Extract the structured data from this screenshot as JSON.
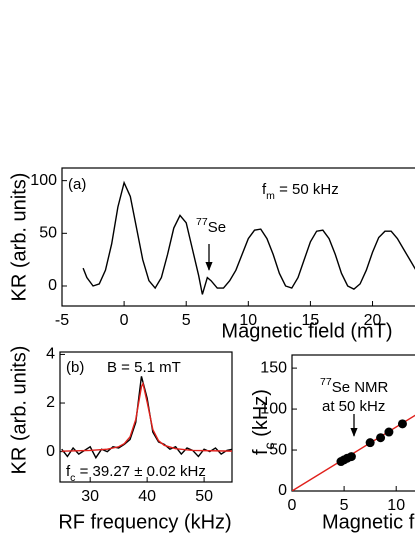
{
  "chart_data": [
    {
      "type": "line",
      "panel": "(a)",
      "xlabel": "Magnetic field (mT)",
      "ylabel": "KR (arb. units)",
      "xlim": [
        -5,
        23.5
      ],
      "ylim": [
        -19,
        112
      ],
      "xticks": [
        -5,
        0,
        5,
        10,
        15,
        20
      ],
      "yticks": [
        0,
        50,
        100
      ],
      "annotations": [
        {
          "parts": [
            {
              "text": "f"
            },
            {
              "text": "m",
              "sub": true
            },
            {
              "text": " = 50 kHz"
            }
          ]
        },
        {
          "parts": [
            {
              "text": "77",
              "sup": true
            },
            {
              "text": "Se"
            }
          ]
        }
      ],
      "series": [
        {
          "color": "#000000",
          "x": [
            -3.3,
            -3,
            -2.5,
            -2,
            -1.5,
            -1,
            -0.5,
            0,
            0.5,
            1,
            1.5,
            2,
            2.5,
            3,
            3.5,
            4,
            4.5,
            5,
            5.5,
            6,
            6.3,
            6.7,
            7,
            7.5,
            8,
            8.5,
            9,
            9.5,
            10,
            10.5,
            11,
            11.5,
            12,
            12.5,
            13,
            13.5,
            14,
            14.5,
            15,
            15.5,
            16,
            16.5,
            17,
            17.5,
            18,
            18.5,
            19,
            19.5,
            20,
            20.5,
            21,
            21.5,
            22,
            22.5,
            23,
            23.5
          ],
          "values": [
            17,
            8,
            0,
            2,
            15,
            40,
            75,
            98,
            85,
            55,
            25,
            5,
            -2,
            8,
            30,
            55,
            67,
            60,
            35,
            10,
            -8,
            8,
            5,
            -2,
            -2,
            5,
            15,
            30,
            45,
            53,
            54,
            45,
            30,
            12,
            0,
            -2,
            8,
            25,
            42,
            52,
            53,
            45,
            30,
            12,
            0,
            -3,
            2,
            15,
            32,
            46,
            52,
            52,
            45,
            35,
            25,
            15
          ]
        }
      ]
    },
    {
      "type": "line",
      "panel": "(b)",
      "xlabel": "RF frequency (kHz)",
      "ylabel": "KR (arb. units)",
      "xlim": [
        24.7,
        54.9
      ],
      "ylim": [
        -1.25,
        4.1
      ],
      "xticks": [
        30,
        40,
        50
      ],
      "yticks": [
        0,
        2,
        4
      ],
      "annotations": [
        {
          "parts": [
            {
              "text": "B = 5.1 mT"
            }
          ]
        },
        {
          "parts": [
            {
              "text": "f"
            },
            {
              "text": "c",
              "sub": true
            },
            {
              "text": " = 39.27 ± 0.02 kHz"
            }
          ]
        }
      ],
      "series": [
        {
          "color": "#000000",
          "x": [
            25,
            26,
            27,
            28,
            29,
            30,
            31,
            32,
            33,
            34,
            35,
            36,
            37,
            38,
            39,
            40,
            41,
            42,
            43,
            44,
            45,
            46,
            47,
            48,
            49,
            50,
            51,
            52,
            53,
            54,
            55
          ],
          "values": [
            0.1,
            -0.2,
            0.15,
            -0.1,
            0.05,
            0.2,
            -0.25,
            0.1,
            0.0,
            0.2,
            0.15,
            0.3,
            0.5,
            1.2,
            3.1,
            2.2,
            0.8,
            0.4,
            0.3,
            0.1,
            0.2,
            -0.1,
            0.15,
            0.05,
            -0.2,
            0.1,
            0.0,
            0.15,
            -0.1,
            0.05,
            0.1
          ]
        },
        {
          "color": "#e0201b",
          "x": [
            25,
            30,
            33,
            35,
            36,
            37,
            38,
            39,
            39.27,
            40,
            41,
            42,
            43,
            45,
            48,
            55
          ],
          "values": [
            0.02,
            0.05,
            0.1,
            0.2,
            0.33,
            0.61,
            1.32,
            2.67,
            2.8,
            2.04,
            0.91,
            0.45,
            0.26,
            0.12,
            0.05,
            0.02
          ]
        }
      ]
    },
    {
      "type": "scatter",
      "xlabel": "Magnetic field (mT)",
      "ylabel": [
        {
          "text": "f"
        },
        {
          "text": "c",
          "sub": true
        },
        {
          "text": " (kHz)"
        }
      ],
      "xlim": [
        0,
        11.9
      ],
      "ylim": [
        0,
        166
      ],
      "xticks": [
        0,
        5,
        10
      ],
      "yticks": [
        0,
        50,
        100,
        150
      ],
      "annotations": [
        {
          "parts": [
            {
              "text": "77",
              "sup": true
            },
            {
              "text": "Se NMR"
            }
          ]
        },
        {
          "parts": [
            {
              "text": "at 50 kHz"
            }
          ]
        }
      ],
      "series": [
        {
          "type": "line",
          "color": "#e0201b",
          "x": [
            0,
            11.9
          ],
          "values": [
            0,
            93
          ]
        },
        {
          "type": "scatter",
          "color": "#000000",
          "x": [
            4.7,
            5.0,
            5.3,
            5.7,
            7.5,
            8.5,
            9.3,
            10.6
          ],
          "values": [
            36,
            38,
            40,
            42,
            59,
            65,
            72,
            82
          ]
        }
      ]
    }
  ]
}
